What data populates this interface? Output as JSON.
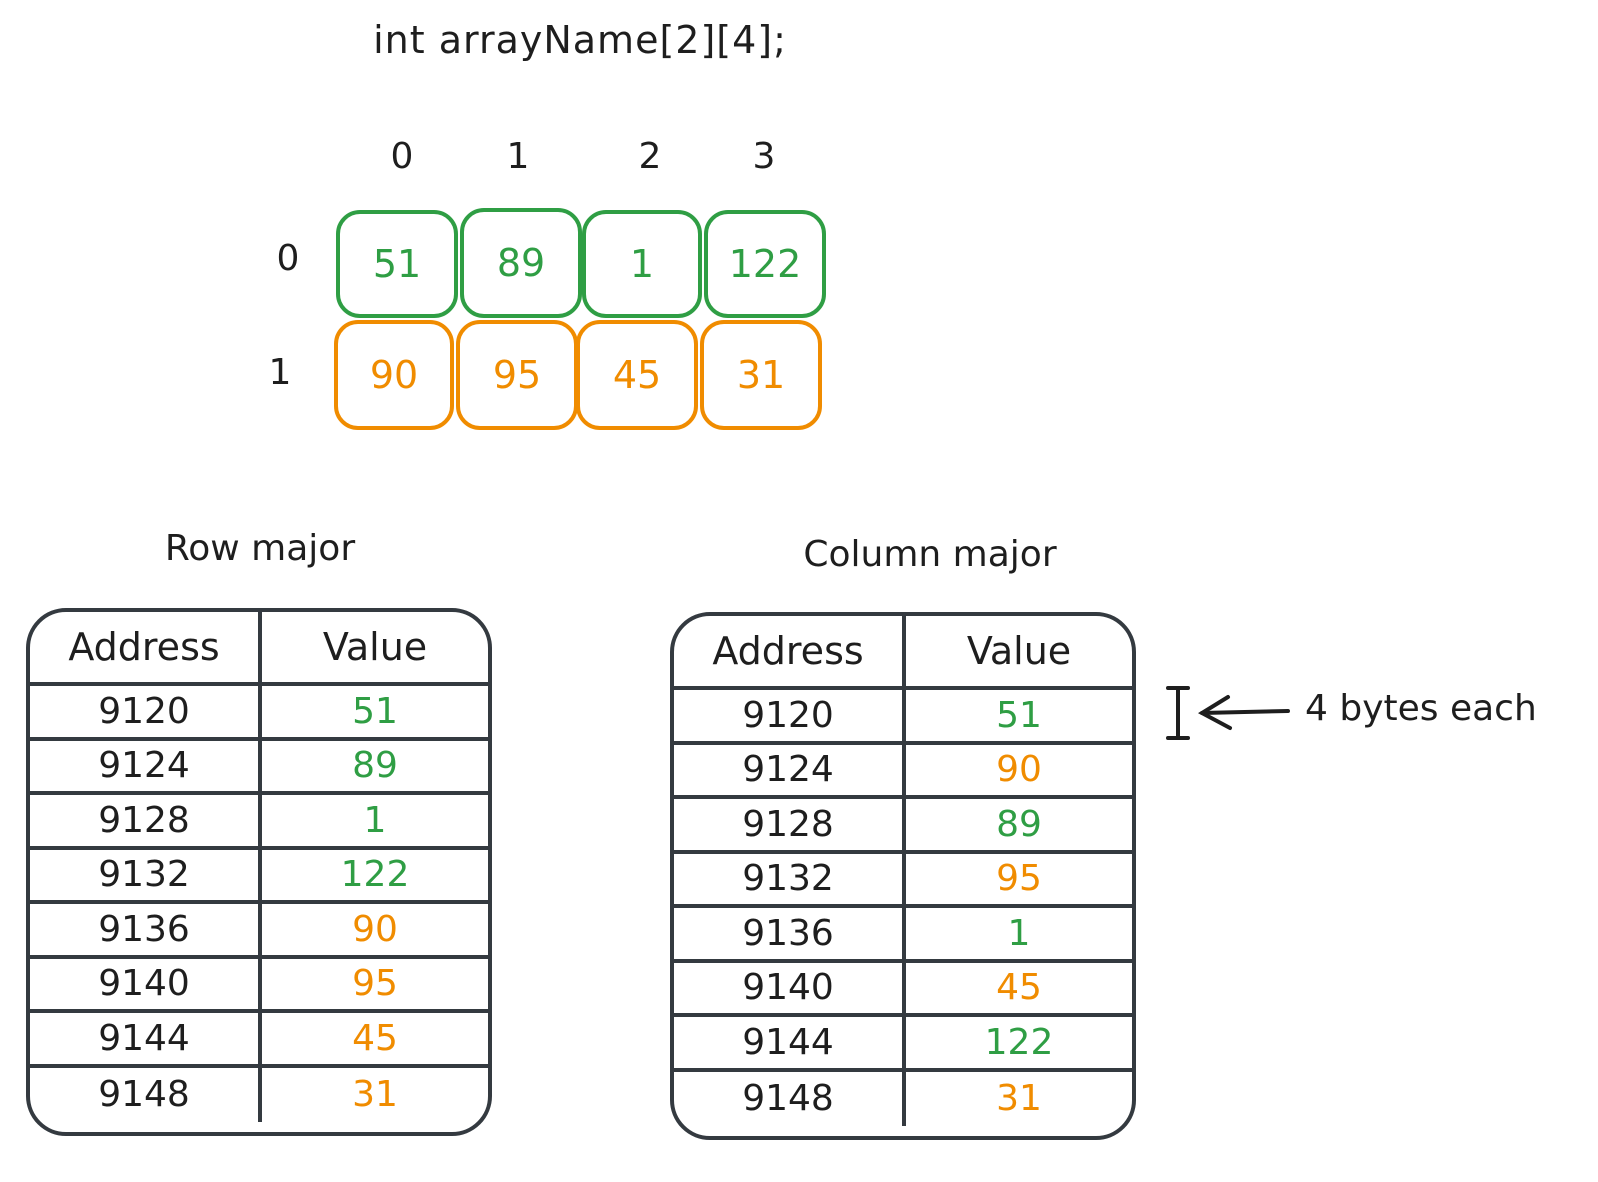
{
  "declaration": "int arrayName[2][4];",
  "column_indices": [
    "0",
    "1",
    "2",
    "3"
  ],
  "row_indices": [
    "0",
    "1"
  ],
  "grid": [
    [
      "51",
      "89",
      "1",
      "122"
    ],
    [
      "90",
      "95",
      "45",
      "31"
    ]
  ],
  "colors": {
    "row0": "#2f9e44",
    "row1": "#f08c00",
    "ink": "#343a40"
  },
  "row_major": {
    "title": "Row major",
    "headers": {
      "address": "Address",
      "value": "Value"
    },
    "rows": [
      {
        "address": "9120",
        "value": "51",
        "color": "green"
      },
      {
        "address": "9124",
        "value": "89",
        "color": "green"
      },
      {
        "address": "9128",
        "value": "1",
        "color": "green"
      },
      {
        "address": "9132",
        "value": "122",
        "color": "green"
      },
      {
        "address": "9136",
        "value": "90",
        "color": "orange"
      },
      {
        "address": "9140",
        "value": "95",
        "color": "orange"
      },
      {
        "address": "9144",
        "value": "45",
        "color": "orange"
      },
      {
        "address": "9148",
        "value": "31",
        "color": "orange"
      }
    ]
  },
  "column_major": {
    "title": "Column major",
    "headers": {
      "address": "Address",
      "value": "Value"
    },
    "rows": [
      {
        "address": "9120",
        "value": "51",
        "color": "green"
      },
      {
        "address": "9124",
        "value": "90",
        "color": "orange"
      },
      {
        "address": "9128",
        "value": "89",
        "color": "green"
      },
      {
        "address": "9132",
        "value": "95",
        "color": "orange"
      },
      {
        "address": "9136",
        "value": "1",
        "color": "green"
      },
      {
        "address": "9140",
        "value": "45",
        "color": "orange"
      },
      {
        "address": "9144",
        "value": "122",
        "color": "green"
      },
      {
        "address": "9148",
        "value": "31",
        "color": "orange"
      }
    ]
  },
  "annotation": "4 bytes each"
}
